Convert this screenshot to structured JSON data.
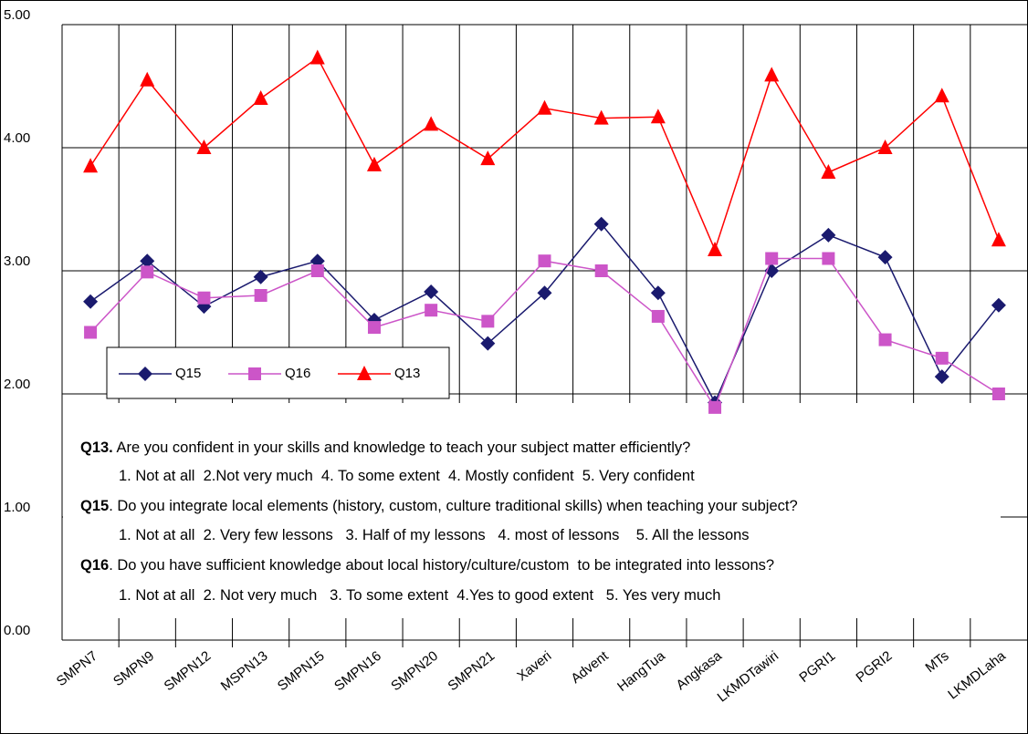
{
  "chart_data": {
    "type": "line",
    "categories": [
      "SMPN7",
      "SMPN9",
      "SMPN12",
      "MSPN13",
      "SMPN15",
      "SMPN16",
      "SMPN20",
      "SMPN21",
      "Xaveri",
      "Advent",
      "HangTua",
      "Angkasa",
      "LKMDTawiri",
      "PGRI1",
      "PGRI2",
      "MTs",
      "LKMDLaha"
    ],
    "series": [
      {
        "name": "Q15",
        "color": "#1a1a6e",
        "marker": "diamond",
        "values": [
          2.75,
          3.08,
          2.71,
          2.95,
          3.08,
          2.6,
          2.83,
          2.41,
          2.82,
          3.38,
          2.82,
          1.93,
          3.0,
          3.29,
          3.11,
          2.14,
          2.72
        ]
      },
      {
        "name": "Q16",
        "color": "#cc55c8",
        "marker": "square",
        "values": [
          2.5,
          2.99,
          2.78,
          2.8,
          3.0,
          2.54,
          2.68,
          2.59,
          3.08,
          3.0,
          2.63,
          1.89,
          3.1,
          3.1,
          2.44,
          2.29,
          2.0
        ]
      },
      {
        "name": "Q13",
        "color": "#ff0000",
        "marker": "triangle",
        "values": [
          3.85,
          4.55,
          4.0,
          4.4,
          4.73,
          3.86,
          4.19,
          3.91,
          4.32,
          4.24,
          4.25,
          3.17,
          4.59,
          3.8,
          4.0,
          4.42,
          3.25
        ]
      }
    ],
    "ylim": [
      0,
      5
    ],
    "yticks": [
      {
        "value": 0,
        "label": "0.00"
      },
      {
        "value": 1,
        "label": "1.00"
      },
      {
        "value": 2,
        "label": "2.00"
      },
      {
        "value": 3,
        "label": "3.00"
      },
      {
        "value": 4,
        "label": "4.00"
      },
      {
        "value": 5,
        "label": "5.00"
      }
    ],
    "grid": true,
    "notes": [
      {
        "label": "Q13.",
        "text": " Are you confident in your skills and knowledge to teach your subject matter efficiently?"
      },
      {
        "text": "1. Not at all  2.Not very much  4. To some extent  4. Mostly confident  5. Very confident"
      },
      {
        "label": "Q15",
        "text": ". Do you integrate local elements (history, custom, culture traditional skills) when teaching your subject?"
      },
      {
        "text": "1. Not at all  2. Very few lessons   3. Half of my lessons   4. most of lessons    5. All the lessons"
      },
      {
        "label": "Q16",
        "text": ". Do you have sufficient knowledge about local history/culture/custom  to be integrated into lessons?"
      },
      {
        "text": "1. Not at all  2. Not very much   3. To some extent  4.Yes to good extent   5. Yes very much"
      }
    ]
  }
}
